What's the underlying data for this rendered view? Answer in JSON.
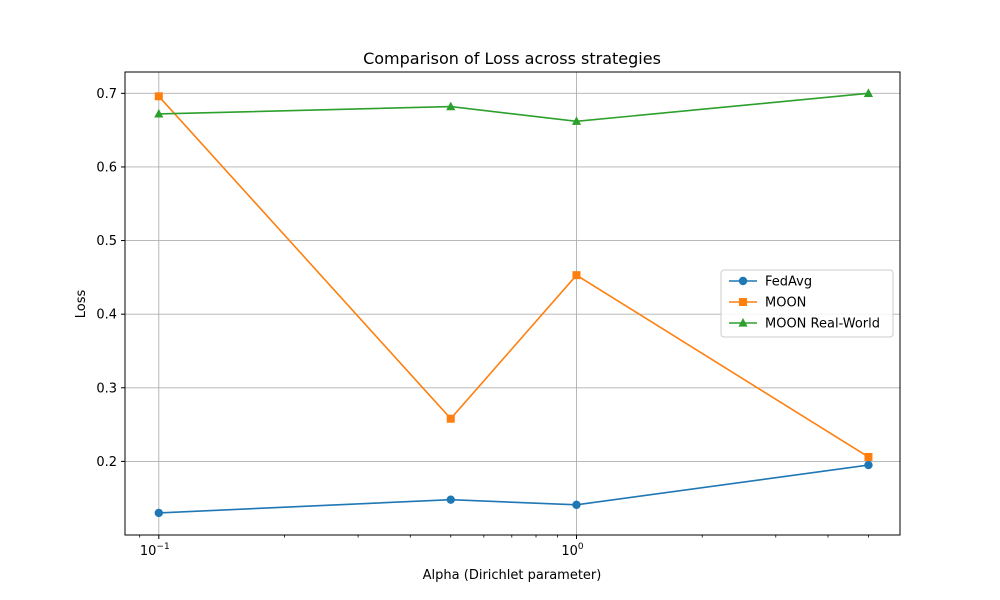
{
  "chart_data": {
    "type": "line",
    "title": "Comparison of Loss across strategies",
    "xlabel": "Alpha (Dirichlet parameter)",
    "ylabel": "Loss",
    "xscale": "log",
    "x": [
      0.1,
      0.5,
      1.0,
      5.0
    ],
    "xlim": [
      0.083,
      5.95
    ],
    "ylim": [
      0.1,
      0.729
    ],
    "xticks": [
      {
        "value": 0.1,
        "base": "10",
        "exp": "−1"
      },
      {
        "value": 1.0,
        "base": "10",
        "exp": "0"
      }
    ],
    "yticks": [
      {
        "value": 0.2,
        "label": "0.2"
      },
      {
        "value": 0.3,
        "label": "0.3"
      },
      {
        "value": 0.4,
        "label": "0.4"
      },
      {
        "value": 0.5,
        "label": "0.5"
      },
      {
        "value": 0.6,
        "label": "0.6"
      },
      {
        "value": 0.7,
        "label": "0.7"
      }
    ],
    "grid": true,
    "legend_position": "center-right",
    "series": [
      {
        "name": "FedAvg",
        "color": "#1f77b4",
        "marker": "circle",
        "values": [
          0.13,
          0.148,
          0.141,
          0.195
        ]
      },
      {
        "name": "MOON",
        "color": "#ff7f0e",
        "marker": "square",
        "values": [
          0.696,
          0.258,
          0.453,
          0.206
        ]
      },
      {
        "name": "MOON Real-World",
        "color": "#2ca02c",
        "marker": "triangle",
        "values": [
          0.672,
          0.682,
          0.662,
          0.7
        ]
      }
    ]
  }
}
